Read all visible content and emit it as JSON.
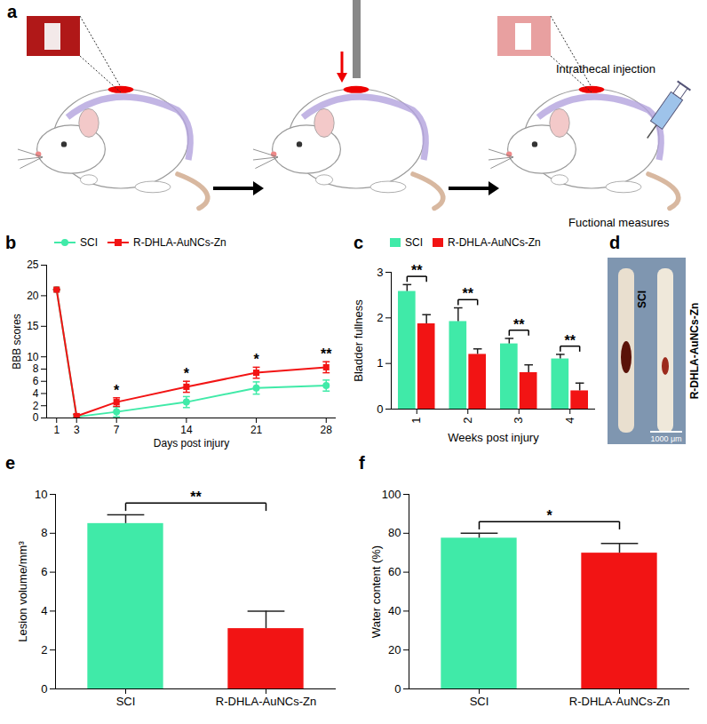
{
  "diagram": {
    "panel": "a",
    "labels": [
      "Intrathecal injection",
      "Fuctional measures"
    ]
  },
  "photo": {
    "panel": "d",
    "labels": [
      "SCI",
      "R-DHLA-AuNCs-Zn"
    ],
    "scale_bar": "1000 μm"
  },
  "chart_data": [
    {
      "panel": "b",
      "type": "line",
      "x_label": "Days post injury",
      "y_label": "BBB scores",
      "x": [
        1,
        3,
        7,
        14,
        21,
        28
      ],
      "xlim": [
        0,
        29
      ],
      "xticks": [
        1,
        3,
        7,
        14,
        21,
        28
      ],
      "ylim": [
        0,
        25
      ],
      "yticks": [
        0,
        2,
        4,
        6,
        8,
        10,
        15,
        20,
        25
      ],
      "legend": "top-left",
      "series": [
        {
          "name": "SCI",
          "color": "#40eaa8",
          "marker": "circle",
          "values": [
            21,
            0.2,
            1.0,
            2.6,
            4.9,
            5.3
          ],
          "errors": [
            0,
            0.3,
            0.8,
            0.9,
            1.0,
            0.9
          ]
        },
        {
          "name": "R-DHLA-AuNCs-Zn",
          "color": "#f21414",
          "marker": "square",
          "values": [
            21,
            0.3,
            2.6,
            5.1,
            7.4,
            8.3
          ],
          "errors": [
            0,
            0.3,
            0.7,
            0.9,
            0.9,
            0.9
          ]
        }
      ],
      "annotations": [
        {
          "x": 7,
          "text": "*"
        },
        {
          "x": 14,
          "text": "*"
        },
        {
          "x": 21,
          "text": "*"
        },
        {
          "x": 28,
          "text": "**"
        }
      ]
    },
    {
      "panel": "c",
      "type": "bar",
      "x_label": "Weeks post injury",
      "y_label": "Bladder fullness",
      "categories": [
        "1",
        "2",
        "3",
        "4"
      ],
      "ylim": [
        0,
        3
      ],
      "yticks": [
        0,
        1,
        2,
        3
      ],
      "legend": "top",
      "series": [
        {
          "name": "SCI",
          "color": "#40eaa8",
          "values": [
            2.58,
            1.92,
            1.43,
            1.1
          ],
          "errors": [
            0.15,
            0.3,
            0.12,
            0.1
          ]
        },
        {
          "name": "R-DHLA-AuNCs-Zn",
          "color": "#f21414",
          "values": [
            1.87,
            1.2,
            0.8,
            0.4
          ],
          "errors": [
            0.2,
            0.12,
            0.17,
            0.17
          ]
        }
      ],
      "significance": [
        "**",
        "**",
        "**",
        "**"
      ]
    },
    {
      "panel": "e",
      "type": "bar",
      "y_label": "Lesion volume/mm³",
      "categories": [
        "SCI",
        "R-DHLA-AuNCs-Zn"
      ],
      "values": [
        8.5,
        3.1
      ],
      "errors": [
        0.45,
        0.9
      ],
      "colors": [
        "#40eaa8",
        "#f21414"
      ],
      "ylim": [
        0,
        10
      ],
      "yticks": [
        0,
        2,
        4,
        6,
        8,
        10
      ],
      "significance": "**"
    },
    {
      "panel": "f",
      "type": "bar",
      "y_label": "Water content (%)",
      "categories": [
        "SCI",
        "R-DHLA-AuNCs-Zn"
      ],
      "values": [
        77.5,
        69.8
      ],
      "errors": [
        2.5,
        5.0
      ],
      "colors": [
        "#40eaa8",
        "#f21414"
      ],
      "ylim": [
        0,
        100
      ],
      "yticks": [
        0,
        20,
        40,
        60,
        80,
        100
      ],
      "significance": "*"
    }
  ]
}
